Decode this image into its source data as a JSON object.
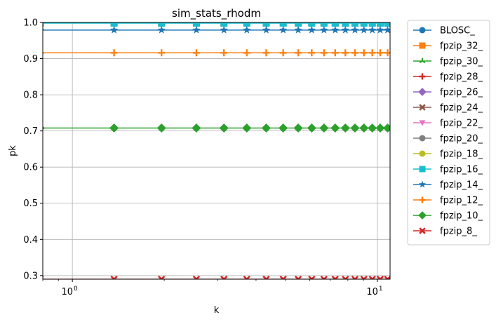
{
  "chart_data": {
    "type": "line",
    "title": "sim_stats_rhodm",
    "xlabel": "k",
    "ylabel": "pk",
    "xscale": "log",
    "xlim": [
      0.8,
      11
    ],
    "ylim": [
      0.29,
      1.0
    ],
    "grid": true,
    "legend_position": "outside-right",
    "x": [
      0.785,
      1.37,
      1.96,
      2.55,
      3.14,
      3.73,
      4.32,
      4.91,
      5.5,
      6.09,
      6.68,
      7.27,
      7.85,
      8.44,
      9.03,
      9.62,
      10.21,
      10.8
    ],
    "x_ticks": [
      {
        "value": 1,
        "base": "10",
        "exp": "0"
      },
      {
        "value": 10,
        "base": "10",
        "exp": "1"
      }
    ],
    "y_ticks": [
      "0.3",
      "0.4",
      "0.5",
      "0.6",
      "0.7",
      "0.8",
      "0.9",
      "1.0"
    ],
    "series": [
      {
        "name": "BLOSC_",
        "value": 1.0,
        "color": "#1f77b4",
        "marker": "circle"
      },
      {
        "name": "fpzip_32_",
        "value": 1.0,
        "color": "#ff7f0e",
        "marker": "square"
      },
      {
        "name": "fpzip_30_",
        "value": 1.0,
        "color": "#2ca02c",
        "marker": "tri"
      },
      {
        "name": "fpzip_28_",
        "value": 1.0,
        "color": "#d62728",
        "marker": "plus"
      },
      {
        "name": "fpzip_26_",
        "value": 1.0,
        "color": "#9467bd",
        "marker": "diamond"
      },
      {
        "name": "fpzip_24_",
        "value": 1.0,
        "color": "#8c564b",
        "marker": "x"
      },
      {
        "name": "fpzip_22_",
        "value": 1.0,
        "color": "#e377c2",
        "marker": "triangle-down"
      },
      {
        "name": "fpzip_20_",
        "value": 1.0,
        "color": "#7f7f7f",
        "marker": "circle"
      },
      {
        "name": "fpzip_18_",
        "value": 1.0,
        "color": "#bcbd22",
        "marker": "circle"
      },
      {
        "name": "fpzip_16_",
        "value": 0.998,
        "color": "#17becf",
        "marker": "square"
      },
      {
        "name": "fpzip_14_",
        "value": 0.979,
        "color": "#1f77b4",
        "marker": "star"
      },
      {
        "name": "fpzip_12_",
        "value": 0.916,
        "color": "#ff7f0e",
        "marker": "plus"
      },
      {
        "name": "fpzip_10_",
        "value": 0.708,
        "color": "#2ca02c",
        "marker": "diamond"
      },
      {
        "name": "fpzip_8_",
        "value": 0.29,
        "color": "#d62728",
        "marker": "x"
      }
    ]
  }
}
